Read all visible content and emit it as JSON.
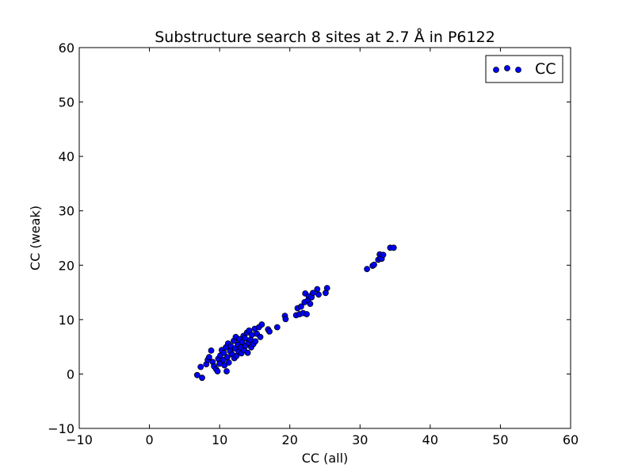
{
  "chart_data": {
    "type": "scatter",
    "title": "Substructure search 8 sites at 2.7 Å in P6122",
    "xlabel": "CC (all)",
    "ylabel": "CC (weak)",
    "xlim": [
      -10,
      60
    ],
    "ylim": [
      -10,
      60
    ],
    "xticks": [
      "−10",
      "0",
      "10",
      "20",
      "30",
      "40",
      "50",
      "60"
    ],
    "yticks": [
      "−10",
      "0",
      "10",
      "20",
      "30",
      "40",
      "50",
      "60"
    ],
    "xtick_values": [
      -10,
      0,
      10,
      20,
      30,
      40,
      50,
      60
    ],
    "ytick_values": [
      -10,
      0,
      10,
      20,
      30,
      40,
      50,
      60
    ],
    "grid": false,
    "legend_position": "top-right",
    "marker_color": "#0000ff",
    "series": [
      {
        "name": "CC",
        "points": [
          [
            6.8,
            -0.2
          ],
          [
            7.3,
            1.3
          ],
          [
            7.5,
            -0.7
          ],
          [
            8.1,
            1.8
          ],
          [
            8.3,
            2.6
          ],
          [
            8.5,
            3.1
          ],
          [
            8.8,
            4.3
          ],
          [
            9.0,
            2.2
          ],
          [
            9.2,
            1.4
          ],
          [
            9.5,
            0.9
          ],
          [
            9.7,
            0.5
          ],
          [
            9.8,
            2.8
          ],
          [
            10.0,
            1.9
          ],
          [
            10.1,
            3.4
          ],
          [
            10.3,
            4.4
          ],
          [
            10.5,
            2.6
          ],
          [
            10.6,
            3.9
          ],
          [
            10.7,
            1.6
          ],
          [
            10.9,
            4.9
          ],
          [
            11.0,
            0.5
          ],
          [
            11.1,
            3.1
          ],
          [
            11.2,
            5.6
          ],
          [
            11.3,
            2.1
          ],
          [
            11.5,
            4.2
          ],
          [
            11.6,
            5.1
          ],
          [
            11.8,
            3.6
          ],
          [
            12.0,
            6.1
          ],
          [
            12.1,
            2.9
          ],
          [
            12.2,
            4.7
          ],
          [
            12.3,
            6.8
          ],
          [
            12.4,
            3.3
          ],
          [
            12.6,
            5.4
          ],
          [
            12.7,
            4.1
          ],
          [
            12.8,
            6.4
          ],
          [
            13.0,
            4.9
          ],
          [
            13.1,
            3.8
          ],
          [
            13.2,
            5.9
          ],
          [
            13.4,
            7.0
          ],
          [
            13.5,
            4.4
          ],
          [
            13.6,
            6.6
          ],
          [
            13.7,
            5.2
          ],
          [
            13.9,
            7.6
          ],
          [
            14.0,
            3.9
          ],
          [
            14.1,
            5.7
          ],
          [
            14.2,
            8.0
          ],
          [
            14.4,
            6.3
          ],
          [
            14.5,
            4.9
          ],
          [
            14.6,
            7.2
          ],
          [
            14.8,
            5.5
          ],
          [
            15.0,
            8.3
          ],
          [
            15.1,
            6.0
          ],
          [
            15.3,
            7.4
          ],
          [
            15.6,
            8.6
          ],
          [
            15.8,
            6.8
          ],
          [
            16.0,
            9.1
          ],
          [
            16.9,
            8.2
          ],
          [
            17.1,
            7.8
          ],
          [
            18.2,
            8.6
          ],
          [
            19.3,
            10.7
          ],
          [
            19.4,
            10.1
          ],
          [
            20.9,
            10.8
          ],
          [
            21.1,
            12.1
          ],
          [
            21.4,
            11.0
          ],
          [
            21.6,
            12.4
          ],
          [
            21.9,
            11.2
          ],
          [
            22.1,
            13.2
          ],
          [
            22.2,
            14.8
          ],
          [
            22.4,
            11.0
          ],
          [
            22.6,
            13.6
          ],
          [
            22.7,
            14.3
          ],
          [
            22.9,
            12.9
          ],
          [
            23.1,
            14.1
          ],
          [
            23.3,
            14.9
          ],
          [
            23.9,
            15.6
          ],
          [
            24.1,
            14.6
          ],
          [
            25.1,
            14.9
          ],
          [
            25.3,
            15.8
          ],
          [
            31.0,
            19.3
          ],
          [
            31.8,
            19.9
          ],
          [
            32.0,
            20.1
          ],
          [
            32.6,
            21.0
          ],
          [
            32.8,
            22.0
          ],
          [
            32.9,
            21.3
          ],
          [
            33.1,
            21.2
          ],
          [
            33.3,
            21.9
          ],
          [
            34.3,
            23.2
          ],
          [
            34.8,
            23.2
          ]
        ]
      }
    ]
  }
}
